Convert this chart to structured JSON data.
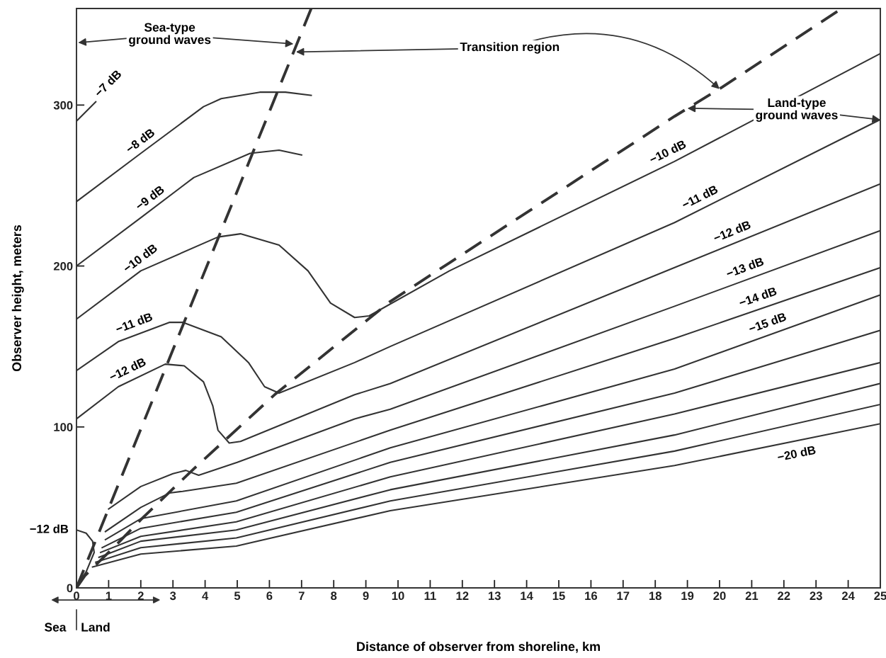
{
  "chart_data": {
    "type": "line",
    "xlabel": "Distance of observer from shoreline, km",
    "ylabel": "Observer height, meters",
    "xlim": [
      0,
      25
    ],
    "ylim": [
      0,
      360
    ],
    "xticks": [
      0,
      1,
      2,
      3,
      4,
      5,
      6,
      7,
      8,
      9,
      10,
      11,
      12,
      13,
      14,
      15,
      16,
      17,
      18,
      19,
      20,
      21,
      22,
      23,
      24,
      25
    ],
    "yticks": [
      0,
      100,
      200,
      300
    ],
    "grid": false,
    "annotations": [
      {
        "text": "Sea-type\nground waves",
        "x": 6.75,
        "y": 338
      },
      {
        "text": "Transition region",
        "x": 20.0,
        "y": 310
      },
      {
        "text": "Land-type\nground waves",
        "x": 19.0,
        "y": 298
      },
      "Sea",
      "Land"
    ],
    "series": [
      {
        "name": "−7 dB",
        "color": "#333333",
        "x": [
          0,
          0.6
        ],
        "values": [
          290,
          302
        ]
      },
      {
        "name": "−8 dB",
        "color": "#333333",
        "x": [
          0,
          2,
          3.95,
          4.5,
          5.7,
          6.5,
          7.3
        ],
        "values": [
          240,
          270,
          299,
          304,
          308,
          308,
          306
        ]
      },
      {
        "name": "−9 dB",
        "color": "#333333",
        "x": [
          0,
          2,
          3.65,
          5.4,
          6.3,
          7.0
        ],
        "values": [
          200,
          230,
          255,
          270,
          272,
          269
        ]
      },
      {
        "name": "−10 dB",
        "color": "#333333",
        "x": [
          0,
          2,
          4.4,
          5.1,
          6.3,
          7.2,
          7.9,
          8.65,
          9.1,
          11.6,
          18.6,
          25
        ],
        "values": [
          167,
          197,
          218,
          220,
          213,
          197,
          177,
          168,
          169,
          197,
          265,
          332
        ]
      },
      {
        "name": "−11 dB",
        "color": "#333333",
        "x": [
          0,
          1.3,
          2.9,
          3.3,
          4.5,
          5.35,
          5.85,
          6.3,
          8.65,
          9.76,
          18.6,
          25
        ],
        "values": [
          135,
          153,
          165,
          165,
          156,
          140,
          125,
          121,
          140,
          150,
          227,
          291
        ]
      },
      {
        "name": "−12 dB",
        "color": "#333333",
        "x": [
          0,
          1.3,
          2.76,
          3.35,
          3.95,
          4.24,
          4.4,
          4.75,
          5.1,
          8.65,
          9.76,
          18.6,
          25
        ],
        "values": [
          105,
          125,
          139,
          138,
          128,
          113,
          98,
          90,
          91,
          120,
          127,
          199,
          251
        ]
      },
      {
        "name": "−12 dB",
        "color": "#333333",
        "x": [
          0,
          0.3,
          0.5,
          0.55,
          0.3,
          0
        ],
        "values": [
          36,
          34,
          29,
          22,
          10,
          1
        ]
      },
      {
        "name": "−13 dB",
        "color": "#333333",
        "x": [
          1.0,
          2,
          3,
          3.4,
          3.8,
          5,
          8.65,
          9.76,
          18.6,
          25
        ],
        "values": [
          49,
          63,
          71,
          73,
          70,
          78,
          105,
          111,
          175,
          222
        ]
      },
      {
        "name": "−14 dB",
        "color": "#333333",
        "x": [
          0.9,
          2,
          2.9,
          3.3,
          4.97,
          9.76,
          18.6,
          25
        ],
        "values": [
          35,
          50,
          59,
          60,
          65,
          98,
          155,
          199
        ]
      },
      {
        "name": "−15 dB",
        "color": "#333333",
        "x": [
          0.9,
          2,
          4.97,
          9.76,
          18.6,
          25
        ],
        "values": [
          30,
          43,
          54,
          87,
          136,
          182
        ]
      },
      {
        "color": "#333333",
        "x": [
          0.8,
          2,
          4.97,
          9.76,
          18.6,
          25
        ],
        "values": [
          25,
          37,
          47,
          78,
          121,
          160
        ]
      },
      {
        "color": "#333333",
        "x": [
          0.75,
          2,
          4.97,
          9.76,
          18.6,
          25
        ],
        "values": [
          22,
          32,
          41,
          69,
          108,
          140
        ]
      },
      {
        "color": "#333333",
        "x": [
          0.7,
          2,
          4.97,
          9.76,
          18.6,
          25
        ],
        "values": [
          19,
          29,
          36,
          61,
          95,
          127
        ]
      },
      {
        "color": "#333333",
        "x": [
          0.6,
          2,
          4.97,
          9.76,
          18.6,
          25
        ],
        "values": [
          16,
          25,
          31,
          54,
          85,
          114
        ]
      },
      {
        "name": "−20 dB",
        "color": "#333333",
        "x": [
          0.5,
          2,
          4.97,
          9.76,
          18.6,
          25
        ],
        "values": [
          13,
          21,
          26,
          48,
          76,
          102
        ]
      },
      {
        "color": "#333333",
        "line_style": "dashed",
        "x": [
          0,
          7.3
        ],
        "values": [
          0,
          360
        ]
      },
      {
        "color": "#333333",
        "line_style": "dashed",
        "x": [
          0,
          0.26,
          1.3,
          2.03,
          3.65,
          6.16,
          9.76,
          11.6,
          18.6,
          20.07,
          23.8
        ],
        "values": [
          0,
          7.5,
          28,
          43,
          74,
          120,
          178,
          202,
          293,
          311,
          360
        ]
      }
    ]
  }
}
